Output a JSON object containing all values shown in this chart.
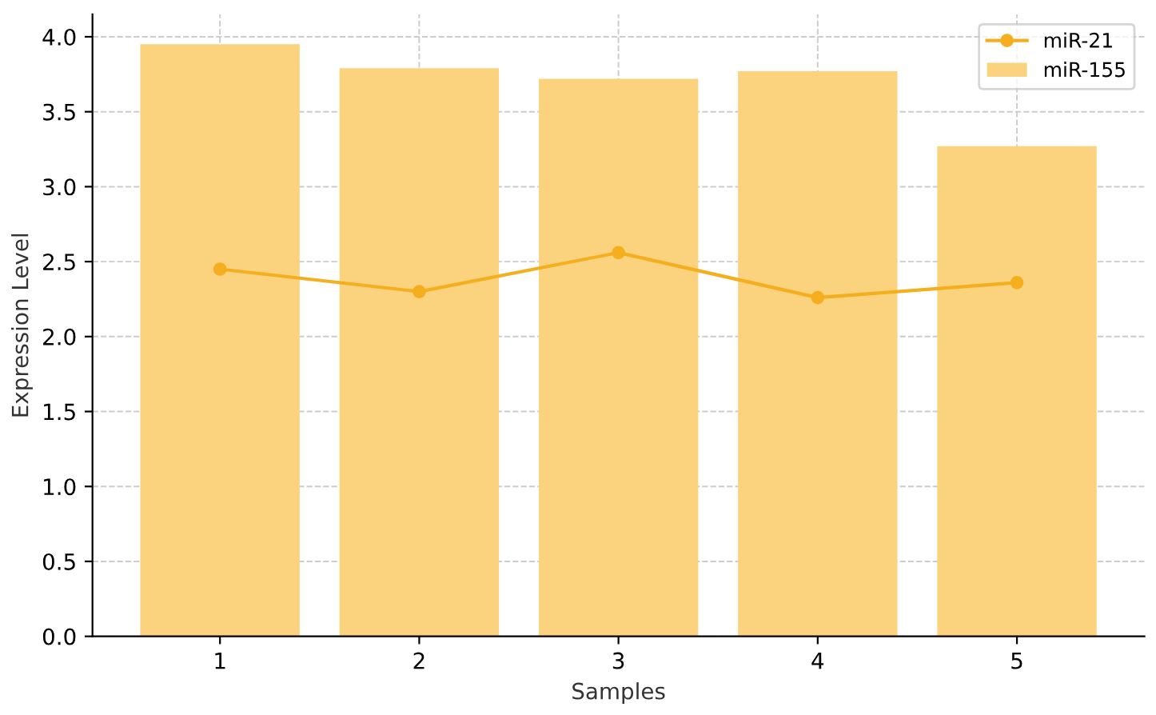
{
  "chart_data": {
    "type": "bar",
    "xlabel": "Samples",
    "ylabel": "Expression Level",
    "categories": [
      "1",
      "2",
      "3",
      "4",
      "5"
    ],
    "series": [
      {
        "name": "miR-21",
        "type": "line",
        "color": "#f5ae1e",
        "values": [
          2.45,
          2.3,
          2.56,
          2.26,
          2.36
        ]
      },
      {
        "name": "miR-155",
        "color": "#fbd37e",
        "values": [
          3.95,
          3.79,
          3.72,
          3.77,
          3.27
        ]
      }
    ],
    "ylim": [
      0,
      4.15
    ],
    "yticks": [
      {
        "value": 0,
        "label": "0.0"
      },
      0.5,
      {
        "value": 1,
        "label": "1.0"
      },
      1.5,
      {
        "value": 2,
        "label": "2.0"
      },
      2.5,
      {
        "value": 3,
        "label": "3.0"
      },
      3.5,
      {
        "value": 4,
        "label": "4.0"
      }
    ],
    "grid": true,
    "legend": "top right",
    "marker": "circle",
    "line_style": "solid"
  }
}
